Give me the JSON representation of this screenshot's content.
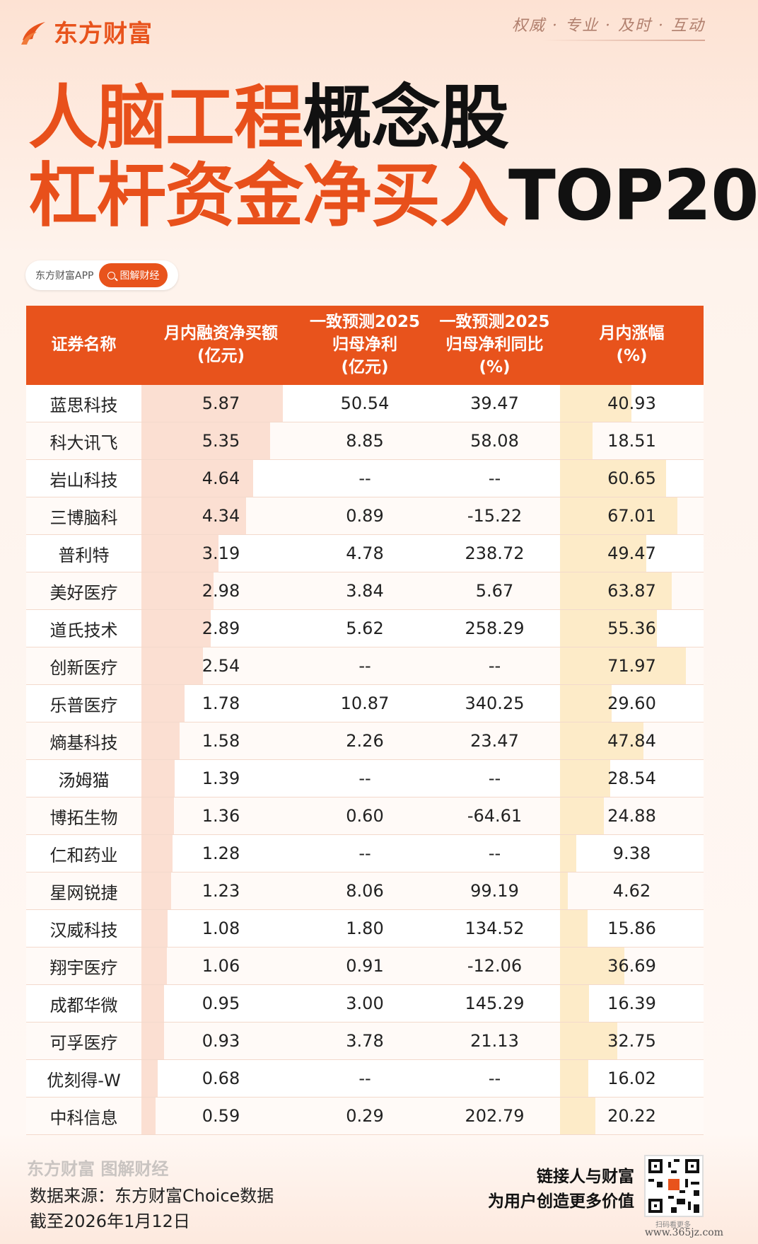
{
  "brand": {
    "name": "东方财富",
    "slogan": "权威 · 专业 · 及时 · 互动"
  },
  "title": {
    "line1_orange": "人脑工程",
    "line1_black": "概念股",
    "line2_orange": "杠杆资金净买入",
    "line2_black": "TOP20"
  },
  "tag": {
    "left": "东方财富APP",
    "right": "图解财经"
  },
  "table": {
    "headers": [
      {
        "l1": "证券名称",
        "l2": "",
        "l3": ""
      },
      {
        "l1": "月内融资净买额",
        "l2": "(亿元)",
        "l3": ""
      },
      {
        "l1": "一致预测2025",
        "l2": "归母净利",
        "l3": "(亿元)"
      },
      {
        "l1": "一致预测2025",
        "l2": "归母净利同比",
        "l3": "(%)"
      },
      {
        "l1": "月内涨幅",
        "l2": "(%)",
        "l3": ""
      }
    ],
    "rows": [
      {
        "name": "蓝思科技",
        "net_buy": "5.87",
        "profit": "50.54",
        "yoy": "39.47",
        "change": "40.93"
      },
      {
        "name": "科大讯飞",
        "net_buy": "5.35",
        "profit": "8.85",
        "yoy": "58.08",
        "change": "18.51"
      },
      {
        "name": "岩山科技",
        "net_buy": "4.64",
        "profit": "--",
        "yoy": "--",
        "change": "60.65"
      },
      {
        "name": "三博脑科",
        "net_buy": "4.34",
        "profit": "0.89",
        "yoy": "-15.22",
        "change": "67.01"
      },
      {
        "name": "普利特",
        "net_buy": "3.19",
        "profit": "4.78",
        "yoy": "238.72",
        "change": "49.47"
      },
      {
        "name": "美好医疗",
        "net_buy": "2.98",
        "profit": "3.84",
        "yoy": "5.67",
        "change": "63.87"
      },
      {
        "name": "道氏技术",
        "net_buy": "2.89",
        "profit": "5.62",
        "yoy": "258.29",
        "change": "55.36"
      },
      {
        "name": "创新医疗",
        "net_buy": "2.54",
        "profit": "--",
        "yoy": "--",
        "change": "71.97"
      },
      {
        "name": "乐普医疗",
        "net_buy": "1.78",
        "profit": "10.87",
        "yoy": "340.25",
        "change": "29.60"
      },
      {
        "name": "熵基科技",
        "net_buy": "1.58",
        "profit": "2.26",
        "yoy": "23.47",
        "change": "47.84"
      },
      {
        "name": "汤姆猫",
        "net_buy": "1.39",
        "profit": "--",
        "yoy": "--",
        "change": "28.54"
      },
      {
        "name": "博拓生物",
        "net_buy": "1.36",
        "profit": "0.60",
        "yoy": "-64.61",
        "change": "24.88"
      },
      {
        "name": "仁和药业",
        "net_buy": "1.28",
        "profit": "--",
        "yoy": "--",
        "change": "9.38"
      },
      {
        "name": "星网锐捷",
        "net_buy": "1.23",
        "profit": "8.06",
        "yoy": "99.19",
        "change": "4.62"
      },
      {
        "name": "汉威科技",
        "net_buy": "1.08",
        "profit": "1.80",
        "yoy": "134.52",
        "change": "15.86"
      },
      {
        "name": "翔宇医疗",
        "net_buy": "1.06",
        "profit": "0.91",
        "yoy": "-12.06",
        "change": "36.69"
      },
      {
        "name": "成都华微",
        "net_buy": "0.95",
        "profit": "3.00",
        "yoy": "145.29",
        "change": "16.39"
      },
      {
        "name": "可孚医疗",
        "net_buy": "0.93",
        "profit": "3.78",
        "yoy": "21.13",
        "change": "32.75"
      },
      {
        "name": "优刻得-W",
        "net_buy": "0.68",
        "profit": "--",
        "yoy": "--",
        "change": "16.02"
      },
      {
        "name": "中科信息",
        "net_buy": "0.59",
        "profit": "0.29",
        "yoy": "202.79",
        "change": "20.22"
      }
    ]
  },
  "watermark": "东方财富",
  "footer": {
    "logo_text": "东方财富 图解财经",
    "source": "数据来源：东方财富Choice数据",
    "date": "截至2026年1月12日",
    "slogan_line1": "链接人与财富",
    "slogan_line2": "为用户创造更多价值",
    "qr_caption": "扫码看更多",
    "site": "www.365jz.com"
  },
  "colors": {
    "accent": "#e8531c",
    "net_bar": "#fbdfd2",
    "change_bar": "#fdebc8"
  }
}
